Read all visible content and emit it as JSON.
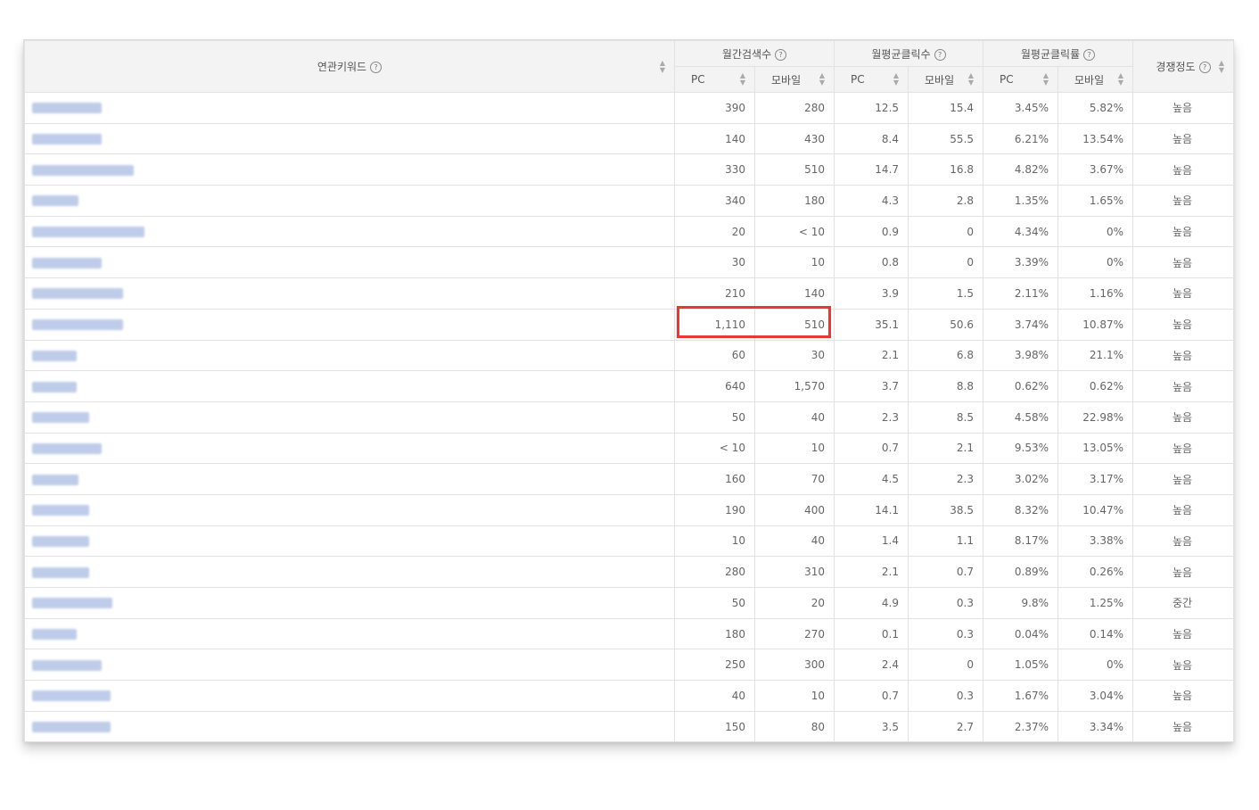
{
  "table": {
    "headers": {
      "keyword": "연관키워드",
      "monthly_search": "월간검색수",
      "monthly_avg_clicks": "월평균클릭수",
      "monthly_avg_ctr": "월평균클릭률",
      "competition": "경쟁정도",
      "pc": "PC",
      "mobile": "모바일"
    },
    "rows": [
      {
        "keyword": "",
        "search_pc": "390",
        "search_mobile": "280",
        "clicks_pc": "12.5",
        "clicks_mobile": "15.4",
        "ctr_pc": "3.45%",
        "ctr_mobile": "5.82%",
        "competition": "높음"
      },
      {
        "keyword": "",
        "search_pc": "140",
        "search_mobile": "430",
        "clicks_pc": "8.4",
        "clicks_mobile": "55.5",
        "ctr_pc": "6.21%",
        "ctr_mobile": "13.54%",
        "competition": "높음"
      },
      {
        "keyword": "",
        "search_pc": "330",
        "search_mobile": "510",
        "clicks_pc": "14.7",
        "clicks_mobile": "16.8",
        "ctr_pc": "4.82%",
        "ctr_mobile": "3.67%",
        "competition": "높음"
      },
      {
        "keyword": "",
        "search_pc": "340",
        "search_mobile": "180",
        "clicks_pc": "4.3",
        "clicks_mobile": "2.8",
        "ctr_pc": "1.35%",
        "ctr_mobile": "1.65%",
        "competition": "높음"
      },
      {
        "keyword": "",
        "search_pc": "20",
        "search_mobile": "< 10",
        "clicks_pc": "0.9",
        "clicks_mobile": "0",
        "ctr_pc": "4.34%",
        "ctr_mobile": "0%",
        "competition": "높음"
      },
      {
        "keyword": "",
        "search_pc": "30",
        "search_mobile": "10",
        "clicks_pc": "0.8",
        "clicks_mobile": "0",
        "ctr_pc": "3.39%",
        "ctr_mobile": "0%",
        "competition": "높음"
      },
      {
        "keyword": "",
        "search_pc": "210",
        "search_mobile": "140",
        "clicks_pc": "3.9",
        "clicks_mobile": "1.5",
        "ctr_pc": "2.11%",
        "ctr_mobile": "1.16%",
        "competition": "높음"
      },
      {
        "keyword": "",
        "search_pc": "1,110",
        "search_mobile": "510",
        "clicks_pc": "35.1",
        "clicks_mobile": "50.6",
        "ctr_pc": "3.74%",
        "ctr_mobile": "10.87%",
        "competition": "높음"
      },
      {
        "keyword": "",
        "search_pc": "60",
        "search_mobile": "30",
        "clicks_pc": "2.1",
        "clicks_mobile": "6.8",
        "ctr_pc": "3.98%",
        "ctr_mobile": "21.1%",
        "competition": "높음"
      },
      {
        "keyword": "",
        "search_pc": "640",
        "search_mobile": "1,570",
        "clicks_pc": "3.7",
        "clicks_mobile": "8.8",
        "ctr_pc": "0.62%",
        "ctr_mobile": "0.62%",
        "competition": "높음"
      },
      {
        "keyword": "",
        "search_pc": "50",
        "search_mobile": "40",
        "clicks_pc": "2.3",
        "clicks_mobile": "8.5",
        "ctr_pc": "4.58%",
        "ctr_mobile": "22.98%",
        "competition": "높음"
      },
      {
        "keyword": "",
        "search_pc": "< 10",
        "search_mobile": "10",
        "clicks_pc": "0.7",
        "clicks_mobile": "2.1",
        "ctr_pc": "9.53%",
        "ctr_mobile": "13.05%",
        "competition": "높음"
      },
      {
        "keyword": "",
        "search_pc": "160",
        "search_mobile": "70",
        "clicks_pc": "4.5",
        "clicks_mobile": "2.3",
        "ctr_pc": "3.02%",
        "ctr_mobile": "3.17%",
        "competition": "높음"
      },
      {
        "keyword": "",
        "search_pc": "190",
        "search_mobile": "400",
        "clicks_pc": "14.1",
        "clicks_mobile": "38.5",
        "ctr_pc": "8.32%",
        "ctr_mobile": "10.47%",
        "competition": "높음"
      },
      {
        "keyword": "",
        "search_pc": "10",
        "search_mobile": "40",
        "clicks_pc": "1.4",
        "clicks_mobile": "1.1",
        "ctr_pc": "8.17%",
        "ctr_mobile": "3.38%",
        "competition": "높음"
      },
      {
        "keyword": "",
        "search_pc": "280",
        "search_mobile": "310",
        "clicks_pc": "2.1",
        "clicks_mobile": "0.7",
        "ctr_pc": "0.89%",
        "ctr_mobile": "0.26%",
        "competition": "높음"
      },
      {
        "keyword": "",
        "search_pc": "50",
        "search_mobile": "20",
        "clicks_pc": "4.9",
        "clicks_mobile": "0.3",
        "ctr_pc": "9.8%",
        "ctr_mobile": "1.25%",
        "competition": "중간"
      },
      {
        "keyword": "",
        "search_pc": "180",
        "search_mobile": "270",
        "clicks_pc": "0.1",
        "clicks_mobile": "0.3",
        "ctr_pc": "0.04%",
        "ctr_mobile": "0.14%",
        "competition": "높음"
      },
      {
        "keyword": "",
        "search_pc": "250",
        "search_mobile": "300",
        "clicks_pc": "2.4",
        "clicks_mobile": "0",
        "ctr_pc": "1.05%",
        "ctr_mobile": "0%",
        "competition": "높음"
      },
      {
        "keyword": "",
        "search_pc": "40",
        "search_mobile": "10",
        "clicks_pc": "0.7",
        "clicks_mobile": "0.3",
        "ctr_pc": "1.67%",
        "ctr_mobile": "3.04%",
        "competition": "높음"
      },
      {
        "keyword": "",
        "search_pc": "150",
        "search_mobile": "80",
        "clicks_pc": "3.5",
        "clicks_mobile": "2.7",
        "ctr_pc": "2.37%",
        "ctr_mobile": "3.34%",
        "competition": "높음"
      }
    ]
  },
  "colors": {
    "highlight_border": "#e53935",
    "link_blur": "#8aa2d8",
    "header_bg": "#f3f3f3"
  }
}
